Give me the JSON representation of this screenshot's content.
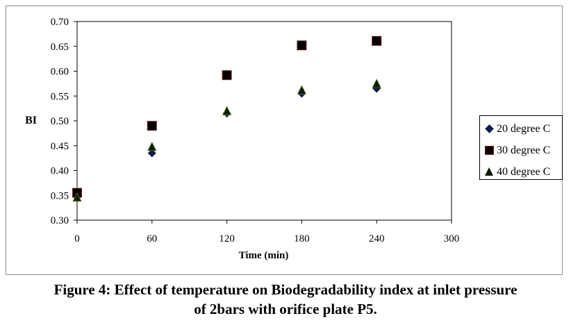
{
  "chart_data": {
    "type": "scatter",
    "xlabel": "Time (min)",
    "ylabel": "BI",
    "xlim": [
      0,
      300
    ],
    "ylim": [
      0.3,
      0.7
    ],
    "xticks": [
      "0",
      "60",
      "120",
      "180",
      "240",
      "300"
    ],
    "yticks": [
      "0.30",
      "0.35",
      "0.40",
      "0.45",
      "0.50",
      "0.55",
      "0.60",
      "0.65",
      "0.70"
    ],
    "grid": false,
    "legend_position": "right",
    "series": [
      {
        "name": "20 degree C",
        "marker": "diamond",
        "color": "#0b1f4f",
        "x": [
          0,
          60,
          120,
          180,
          240
        ],
        "y": [
          0.35,
          0.435,
          0.515,
          0.555,
          0.565
        ]
      },
      {
        "name": "30 degree C",
        "marker": "square",
        "color": "#000000",
        "x": [
          0,
          60,
          120,
          180,
          240
        ],
        "y": [
          0.355,
          0.49,
          0.592,
          0.652,
          0.661
        ]
      },
      {
        "name": "40 degree C",
        "marker": "triangle",
        "color": "#0f1a05",
        "x": [
          0,
          60,
          120,
          180,
          240
        ],
        "y": [
          0.345,
          0.447,
          0.519,
          0.561,
          0.574
        ]
      }
    ]
  },
  "caption": {
    "line1": "Figure 4: Effect of temperature on Biodegradability index at inlet pressure",
    "line2": "of 2bars with orifice plate P5."
  }
}
